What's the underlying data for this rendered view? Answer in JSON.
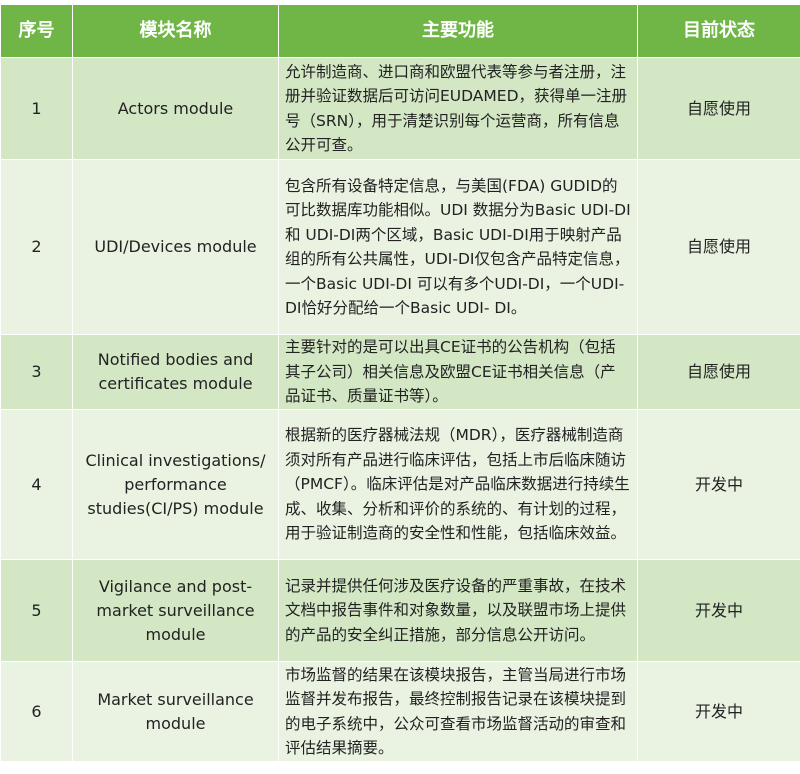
{
  "header": {
    "col1": "序号",
    "col2": "模块名称",
    "col3": "主要功能",
    "col4": "目前状态"
  },
  "colors": {
    "header": "#6fb646",
    "row_odd": "#d3e7c5",
    "row_even": "#eaf3e2"
  },
  "rows": [
    {
      "no": "1",
      "name": "Actors module",
      "func": "允许制造商、进口商和欧盟代表等参与者注册，注册并验证数据后可访问EUDAMED，获得单一注册号（SRN），用于清楚识别每个运营商，所有信息公开可查。",
      "status": "自愿使用"
    },
    {
      "no": "2",
      "name": "UDI/Devices module",
      "func": "包含所有设备特定信息，与美国(FDA) GUDID的可比数据库功能相似。UDI 数据分为Basic UDI-DI和 UDI-DI两个区域，Basic UDI-DI用于映射产品组的所有公共属性，UDI-DI仅包含产品特定信息，一个Basic UDI-DI 可以有多个UDI-DI，一个UDI-DI恰好分配给一个Basic UDI- DI。",
      "status": "自愿使用"
    },
    {
      "no": "3",
      "name": "Notified bodies and certificates module",
      "func": "主要针对的是可以出具CE证书的公告机构（包括其子公司）相关信息及欧盟CE证书相关信息（产品证书、质量证书等）。",
      "status": "自愿使用"
    },
    {
      "no": "4",
      "name": "Clinical investigations/ performance studies(CI/PS) module",
      "func": "根据新的医疗器械法规（MDR），医疗器械制造商须对所有产品进行临床评估，包括上市后临床随访（PMCF）。临床评估是对产品临床数据进行持续生成、收集、分析和评价的系统的、有计划的过程，用于验证制造商的安全性和性能，包括临床效益。",
      "status": "开发中"
    },
    {
      "no": "5",
      "name": "Vigilance and post-market surveillance module",
      "func": "记录并提供任何涉及医疗设备的严重事故，在技术文档中报告事件和对象数量，以及联盟市场上提供的产品的安全纠正措施，部分信息公开访问。",
      "status": "开发中"
    },
    {
      "no": "6",
      "name": "Market surveillance module",
      "func": "市场监督的结果在该模块报告，主管当局进行市场监督并发布报告，最终控制报告记录在该模块提到的电子系统中，公众可查看市场监督活动的审查和评估结果摘要。",
      "status": "开发中"
    }
  ]
}
